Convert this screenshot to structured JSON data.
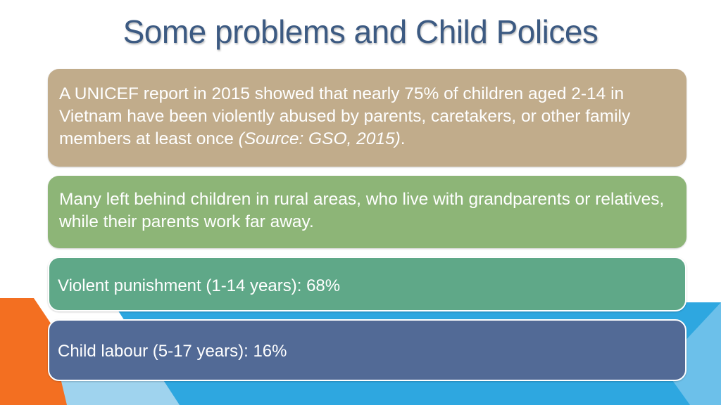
{
  "slide": {
    "title": "Some problems and Child Polices",
    "box1": {
      "text": "A UNICEF report in 2015 showed that nearly 75% of children aged 2-14 in Vietnam have been violently abused by parents, caretakers, or other family members at least once ",
      "source": "(Source: GSO, 2015)",
      "end": "."
    },
    "box2": {
      "text": "Many left behind children in rural areas, who live with grandparents or relatives, while their parents work far away."
    },
    "box3": {
      "text": "Violent punishment (1-14 years): 68%"
    },
    "box4": {
      "text": "Child labour (5-17 years): 16%"
    }
  },
  "colors": {
    "box1": "#c1ac8b",
    "box2": "#8db577",
    "box3": "#5fa888",
    "box4": "#526a96",
    "title": "#3c5a82",
    "accent_orange": "#f36f21",
    "accent_blue": "#2ea7e0"
  }
}
